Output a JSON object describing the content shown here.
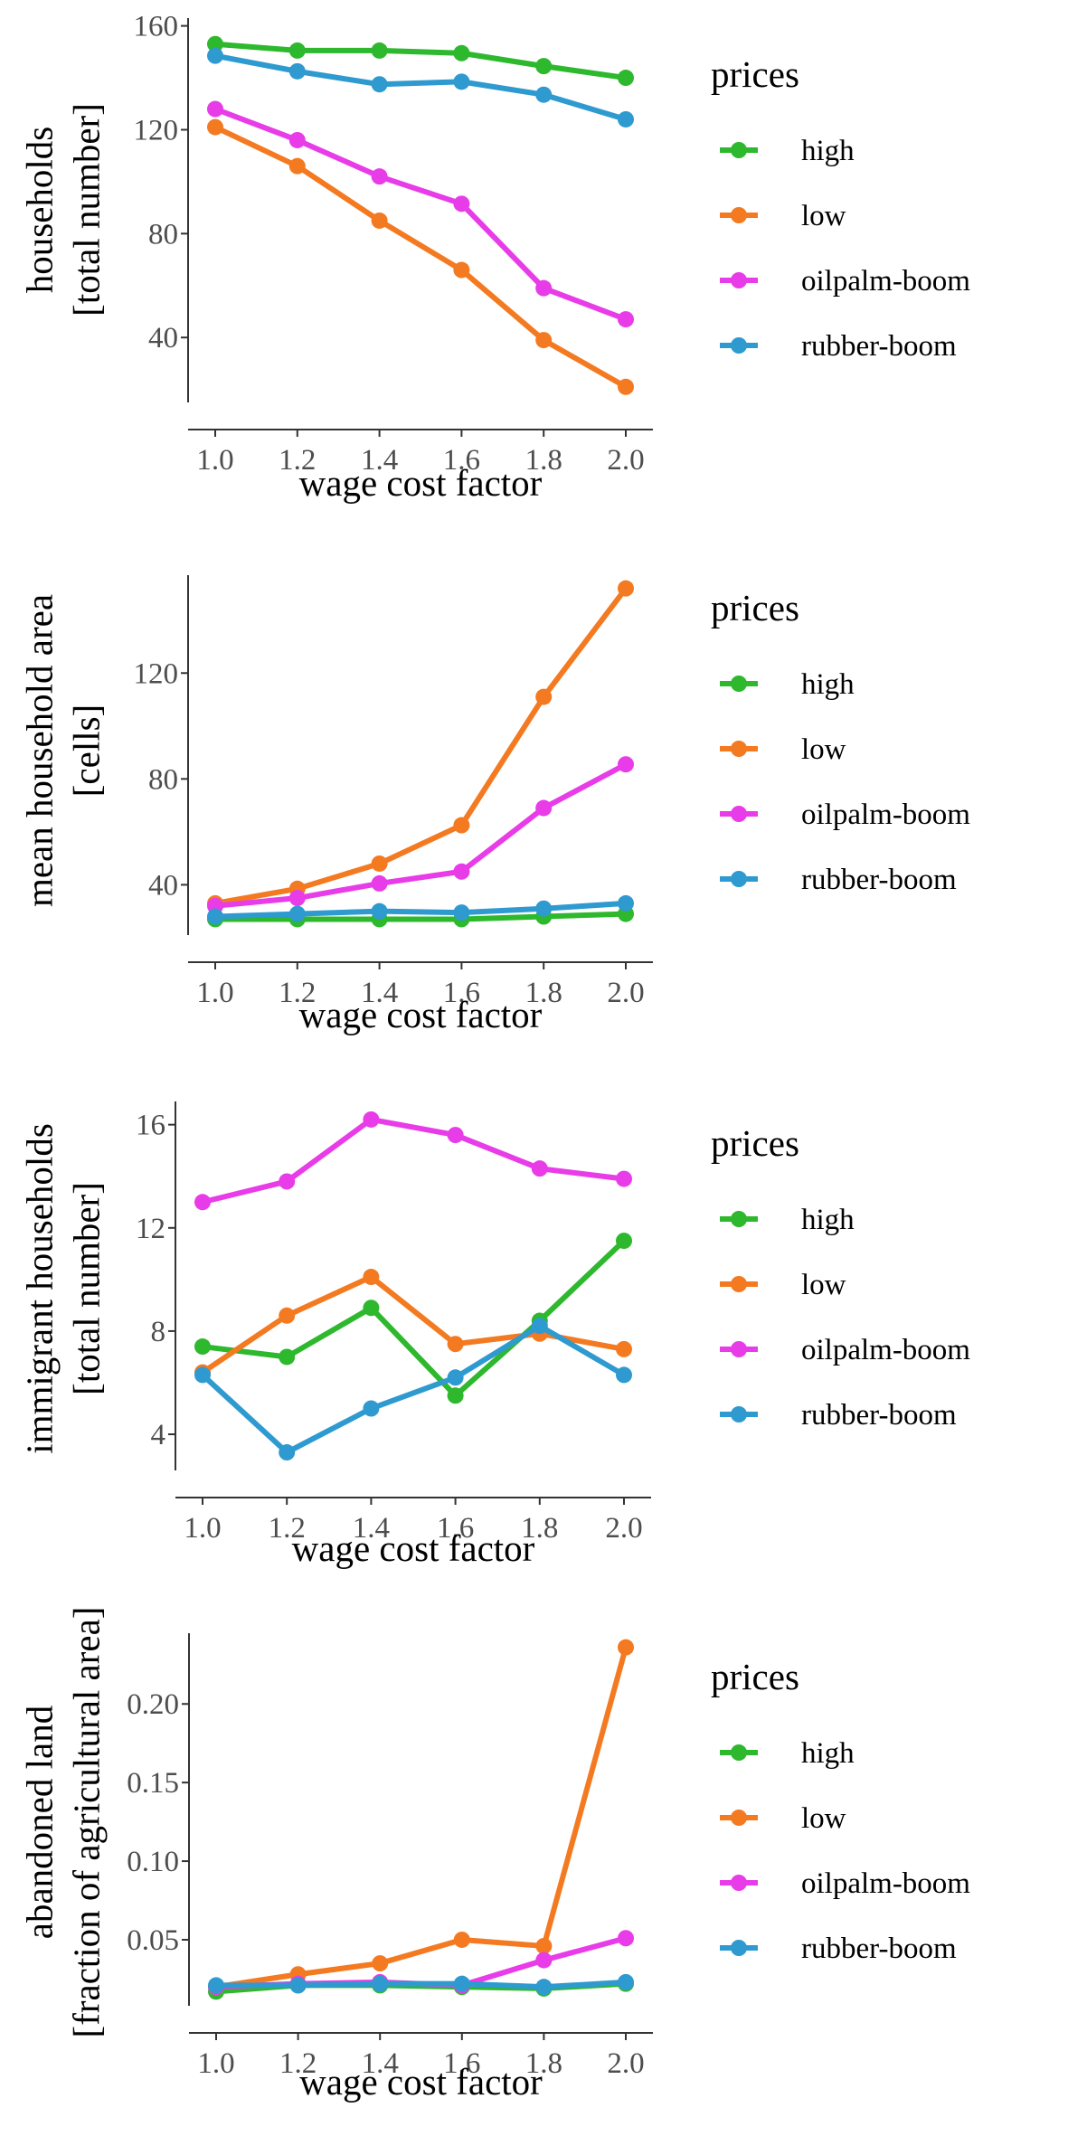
{
  "chart_data": [
    {
      "type": "line",
      "xlabel": "wage cost factor",
      "ylabel": [
        "households",
        "[total number]"
      ],
      "x": [
        1.0,
        1.2,
        1.4,
        1.6,
        1.8,
        2.0
      ],
      "x_ticks": [
        "1.0",
        "1.2",
        "1.4",
        "1.6",
        "1.8",
        "2.0"
      ],
      "y_ticks": [
        40,
        80,
        120,
        160
      ],
      "y_tick_labels": [
        "40",
        "80",
        "120",
        "160"
      ],
      "ylim": [
        15,
        163
      ],
      "series": [
        {
          "name": "high",
          "color": "#2DB82D",
          "values": [
            153,
            150.5,
            150.5,
            149.5,
            144.5,
            140
          ]
        },
        {
          "name": "low",
          "color": "#F47A21",
          "values": [
            121,
            106,
            85,
            66,
            39,
            21
          ]
        },
        {
          "name": "oilpalm-boom",
          "color": "#E83CE8",
          "values": [
            128,
            116,
            102,
            91.5,
            59,
            47
          ]
        },
        {
          "name": "rubber-boom",
          "color": "#2E9AD0",
          "values": [
            148.5,
            142.5,
            137.5,
            138.5,
            133.5,
            124
          ]
        }
      ],
      "legend": {
        "title": "prices",
        "placement": "right"
      },
      "grid": false
    },
    {
      "type": "line",
      "xlabel": "wage cost factor",
      "ylabel": [
        "mean household area",
        "[cells]"
      ],
      "x": [
        1.0,
        1.2,
        1.4,
        1.6,
        1.8,
        2.0
      ],
      "x_ticks": [
        "1.0",
        "1.2",
        "1.4",
        "1.6",
        "1.8",
        "2.0"
      ],
      "y_ticks": [
        40,
        80,
        120
      ],
      "y_tick_labels": [
        "40",
        "80",
        "120"
      ],
      "ylim": [
        21,
        157
      ],
      "series": [
        {
          "name": "high",
          "color": "#2DB82D",
          "values": [
            27,
            27,
            27,
            27,
            28,
            29
          ]
        },
        {
          "name": "low",
          "color": "#F47A21",
          "values": [
            33,
            38.5,
            48,
            62.5,
            111,
            152
          ]
        },
        {
          "name": "oilpalm-boom",
          "color": "#E83CE8",
          "values": [
            32,
            35,
            40.5,
            45,
            69,
            85.5
          ]
        },
        {
          "name": "rubber-boom",
          "color": "#2E9AD0",
          "values": [
            28,
            29,
            30,
            29.5,
            31,
            33
          ]
        }
      ],
      "legend": {
        "title": "prices",
        "placement": "right"
      },
      "grid": false
    },
    {
      "type": "line",
      "xlabel": "wage cost factor",
      "ylabel": [
        "immigrant households",
        "[total number]"
      ],
      "x": [
        1.0,
        1.2,
        1.4,
        1.6,
        1.8,
        2.0
      ],
      "x_ticks": [
        "1.0",
        "1.2",
        "1.4",
        "1.6",
        "1.8",
        "2.0"
      ],
      "y_ticks": [
        4,
        8,
        12,
        16
      ],
      "y_tick_labels": [
        "4",
        "8",
        "12",
        "16"
      ],
      "ylim": [
        2.6,
        16.9
      ],
      "series": [
        {
          "name": "high",
          "color": "#2DB82D",
          "values": [
            7.4,
            7.0,
            8.9,
            5.5,
            8.4,
            11.5
          ]
        },
        {
          "name": "low",
          "color": "#F47A21",
          "values": [
            6.4,
            8.6,
            10.1,
            7.5,
            7.9,
            7.3
          ]
        },
        {
          "name": "oilpalm-boom",
          "color": "#E83CE8",
          "values": [
            13.0,
            13.8,
            16.2,
            15.6,
            14.3,
            13.9
          ]
        },
        {
          "name": "rubber-boom",
          "color": "#2E9AD0",
          "values": [
            6.3,
            3.3,
            5.0,
            6.2,
            8.2,
            6.3
          ]
        }
      ],
      "legend": {
        "title": "prices",
        "placement": "right"
      },
      "grid": false
    },
    {
      "type": "line",
      "xlabel": "wage cost factor",
      "ylabel": [
        "abandoned land",
        "[fraction of agricultural area]"
      ],
      "x": [
        1.0,
        1.2,
        1.4,
        1.6,
        1.8,
        2.0
      ],
      "x_ticks": [
        "1.0",
        "1.2",
        "1.4",
        "1.6",
        "1.8",
        "2.0"
      ],
      "y_ticks": [
        0.05,
        0.1,
        0.15,
        0.2
      ],
      "y_tick_labels": [
        "0.05",
        "0.10",
        "0.15",
        "0.20"
      ],
      "ylim": [
        0.008,
        0.245
      ],
      "series": [
        {
          "name": "high",
          "color": "#2DB82D",
          "values": [
            0.017,
            0.021,
            0.021,
            0.02,
            0.019,
            0.022
          ]
        },
        {
          "name": "low",
          "color": "#F47A21",
          "values": [
            0.02,
            0.028,
            0.035,
            0.05,
            0.046,
            0.236
          ]
        },
        {
          "name": "oilpalm-boom",
          "color": "#E83CE8",
          "values": [
            0.02,
            0.022,
            0.023,
            0.021,
            0.037,
            0.051
          ]
        },
        {
          "name": "rubber-boom",
          "color": "#2E9AD0",
          "values": [
            0.021,
            0.021,
            0.022,
            0.022,
            0.02,
            0.023
          ]
        }
      ],
      "legend": {
        "title": "prices",
        "placement": "right"
      },
      "grid": false
    }
  ]
}
